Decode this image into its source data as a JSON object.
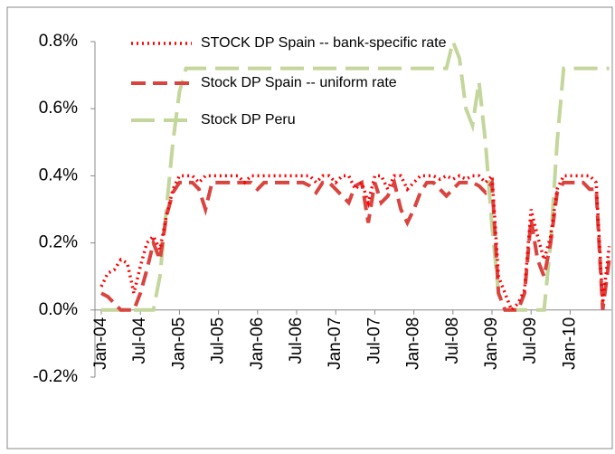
{
  "chart_data": {
    "type": "line",
    "categories": [
      "Jan-04",
      null,
      null,
      null,
      null,
      null,
      "Jul-04",
      null,
      null,
      null,
      null,
      null,
      "Jan-05",
      null,
      null,
      null,
      null,
      null,
      "Jul-05",
      null,
      null,
      null,
      null,
      null,
      "Jan-06",
      null,
      null,
      null,
      null,
      null,
      "Jul-06",
      null,
      null,
      null,
      null,
      null,
      "Jan-07",
      null,
      null,
      null,
      null,
      null,
      "Jul-07",
      null,
      null,
      null,
      null,
      null,
      "Jan-08",
      null,
      null,
      null,
      null,
      null,
      "Jul-08",
      null,
      null,
      null,
      null,
      null,
      "Jan-09",
      null,
      null,
      null,
      null,
      null,
      "Jul-09",
      null,
      null,
      null,
      null,
      null,
      "Jan-10",
      null,
      null,
      null,
      null,
      null,
      null
    ],
    "series": [
      {
        "name": "STOCK DP Spain -- bank-specific rate",
        "color": "#ff0000",
        "dash": "dotted",
        "values": [
          0.07,
          0.11,
          0.12,
          0.15,
          0.14,
          0.05,
          0.13,
          0.2,
          0.22,
          0.18,
          0.28,
          0.36,
          0.4,
          0.4,
          0.4,
          0.38,
          0.4,
          0.4,
          0.4,
          0.4,
          0.4,
          0.4,
          0.38,
          0.4,
          0.4,
          0.4,
          0.4,
          0.4,
          0.4,
          0.4,
          0.4,
          0.4,
          0.4,
          0.38,
          0.4,
          0.4,
          0.38,
          0.4,
          0.4,
          0.36,
          0.38,
          0.32,
          0.4,
          0.4,
          0.36,
          0.4,
          0.4,
          0.36,
          0.38,
          0.4,
          0.4,
          0.4,
          0.39,
          0.4,
          0.39,
          0.4,
          0.39,
          0.4,
          0.4,
          0.38,
          0.4,
          0.1,
          0.05,
          0.0,
          0.02,
          0.06,
          0.3,
          0.22,
          0.15,
          0.22,
          0.36,
          0.4,
          0.4,
          0.4,
          0.4,
          0.4,
          0.38,
          0.02,
          0.19
        ]
      },
      {
        "name": "Stock DP Spain -- uniform rate",
        "color": "#d9443f",
        "dash": "dashed",
        "values": [
          0.05,
          0.04,
          0.02,
          0.0,
          0.0,
          0.0,
          0.05,
          0.12,
          0.2,
          0.15,
          0.28,
          0.35,
          0.38,
          0.38,
          0.38,
          0.36,
          0.3,
          0.38,
          0.38,
          0.38,
          0.38,
          0.38,
          0.38,
          0.38,
          0.36,
          0.38,
          0.38,
          0.38,
          0.38,
          0.38,
          0.38,
          0.38,
          0.37,
          0.35,
          0.38,
          0.38,
          0.36,
          0.34,
          0.32,
          0.37,
          0.38,
          0.26,
          0.38,
          0.32,
          0.34,
          0.38,
          0.3,
          0.26,
          0.3,
          0.35,
          0.38,
          0.38,
          0.36,
          0.34,
          0.36,
          0.38,
          0.38,
          0.38,
          0.37,
          0.35,
          0.38,
          0.05,
          0.0,
          0.0,
          0.0,
          0.05,
          0.27,
          0.15,
          0.1,
          0.2,
          0.35,
          0.38,
          0.38,
          0.38,
          0.38,
          0.36,
          0.36,
          0.0,
          0.15
        ]
      },
      {
        "name": "Stock DP Peru",
        "color": "#c3d69b",
        "dash": "longdash",
        "values": [
          0,
          0,
          0,
          0,
          0,
          0,
          0,
          0,
          0,
          0.1,
          0.3,
          0.5,
          0.65,
          0.72,
          0.72,
          0.72,
          0.72,
          0.72,
          0.72,
          0.72,
          0.72,
          0.72,
          0.72,
          0.72,
          0.72,
          0.72,
          0.72,
          0.72,
          0.72,
          0.72,
          0.72,
          0.72,
          0.72,
          0.72,
          0.72,
          0.72,
          0.72,
          0.72,
          0.72,
          0.72,
          0.72,
          0.72,
          0.72,
          0.72,
          0.72,
          0.72,
          0.72,
          0.72,
          0.72,
          0.72,
          0.72,
          0.72,
          0.72,
          0.72,
          0.8,
          0.75,
          0.6,
          0.55,
          0.68,
          0.5,
          0.25,
          0.05,
          0,
          0,
          0,
          0,
          0,
          0,
          0,
          0.2,
          0.5,
          0.72,
          0.72,
          0.72,
          0.72,
          0.72,
          0.72,
          0.72,
          0.72
        ]
      }
    ],
    "ylim": [
      -0.2,
      0.8
    ],
    "yticks": [
      {
        "value": -0.2,
        "label": "-0.2%"
      },
      {
        "value": 0,
        "label": "0.0%"
      },
      {
        "value": 0.2,
        "label": "0.2%"
      },
      {
        "value": 0.4,
        "label": "0.4%"
      },
      {
        "value": 0.6,
        "label": "0.6%"
      },
      {
        "value": 0.8,
        "label": "0.8%"
      }
    ],
    "legend": "top-left"
  }
}
